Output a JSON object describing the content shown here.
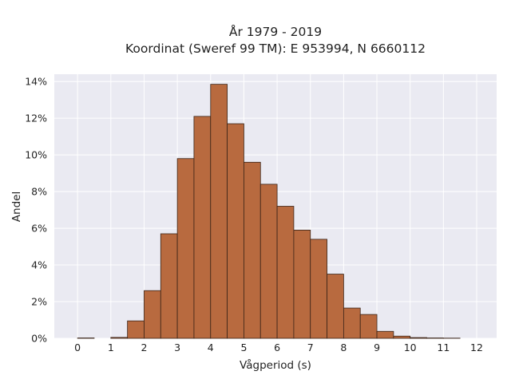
{
  "chart_data": {
    "type": "bar",
    "title": "År 1979 - 2019",
    "subtitle": "Koordinat (Sweref 99 TM): E 953994, N 6660112",
    "xlabel": "Vågperiod (s)",
    "ylabel": "Andel",
    "xlim": [
      -0.7,
      12.6
    ],
    "ylim": [
      0,
      14.4
    ],
    "x_ticks": [
      0,
      1,
      2,
      3,
      4,
      5,
      6,
      7,
      8,
      9,
      10,
      11,
      12
    ],
    "y_ticks": [
      0,
      2,
      4,
      6,
      8,
      10,
      12,
      14
    ],
    "y_tick_labels": [
      "0%",
      "2%",
      "4%",
      "6%",
      "8%",
      "10%",
      "12%",
      "14%"
    ],
    "bin_width": 0.5,
    "bin_starts": [
      0,
      0.5,
      1,
      1.5,
      2,
      2.5,
      3,
      3.5,
      4,
      4.5,
      5,
      5.5,
      6,
      6.5,
      7,
      7.5,
      8,
      8.5,
      9,
      9.5,
      10,
      10.5,
      11,
      11.5,
      12
    ],
    "values": [
      0.02,
      0.0,
      0.05,
      0.95,
      2.6,
      5.7,
      9.8,
      12.1,
      13.85,
      11.7,
      9.6,
      8.4,
      7.2,
      5.9,
      5.4,
      3.5,
      1.65,
      1.3,
      0.38,
      0.12,
      0.04,
      0.02,
      0.01,
      0.0,
      0.0
    ],
    "grid": true,
    "colors": {
      "bar_fill": "#b86a3f",
      "bar_edge": "#3a2418",
      "plot_background": "#eaeaf2",
      "grid": "#ffffff"
    }
  }
}
